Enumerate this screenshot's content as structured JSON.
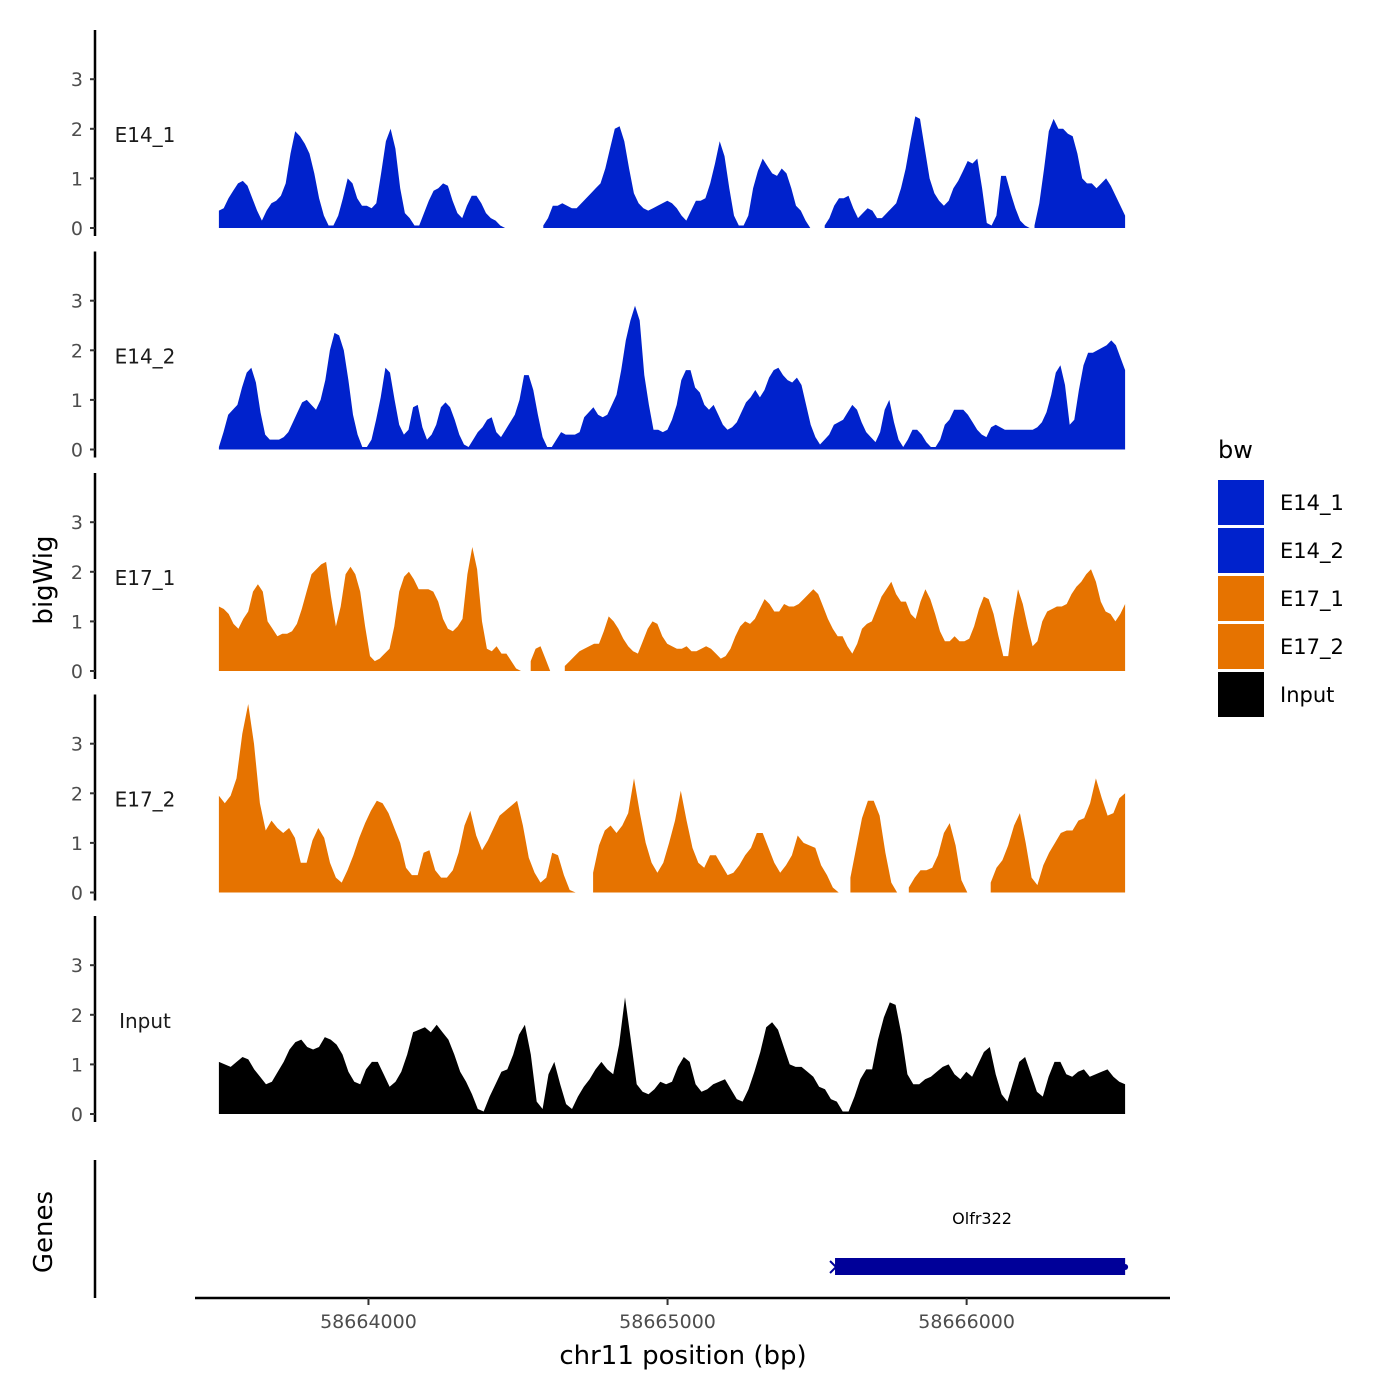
{
  "chart_data": {
    "type": "area",
    "ylabel": "bigWig",
    "xlabel": "chr11 position (bp)",
    "genes_label": "Genes",
    "x_range": [
      58663500,
      58666530
    ],
    "xlim": [
      58663420,
      58666680
    ],
    "ylim": [
      0,
      4
    ],
    "y_ticks": [
      "0",
      "1",
      "2",
      "3"
    ],
    "x_ticks": [
      {
        "value": 58664000,
        "label": "58664000"
      },
      {
        "value": 58665000,
        "label": "58665000"
      },
      {
        "value": 58666000,
        "label": "58666000"
      }
    ],
    "legend": {
      "title": "bw",
      "entries": [
        {
          "label": "E14_1",
          "color": "#0022cc"
        },
        {
          "label": "E14_2",
          "color": "#0022cc"
        },
        {
          "label": "E17_1",
          "color": "#e67300"
        },
        {
          "label": "E17_2",
          "color": "#e67300"
        },
        {
          "label": "Input",
          "color": "#000000"
        }
      ]
    },
    "series": [
      {
        "name": "E14_1",
        "color": "#0022cc",
        "values": [
          0.35,
          0.4,
          0.6,
          0.75,
          0.9,
          0.95,
          0.85,
          0.6,
          0.35,
          0.15,
          0.35,
          0.5,
          0.55,
          0.65,
          0.9,
          1.5,
          1.95,
          1.85,
          1.7,
          1.5,
          1.1,
          0.6,
          0.25,
          0.05,
          0.05,
          0.25,
          0.6,
          1.0,
          0.9,
          0.6,
          0.45,
          0.45,
          0.4,
          0.5,
          1.1,
          1.75,
          2.0,
          1.6,
          0.8,
          0.3,
          0.2,
          0.05,
          0.05,
          0.3,
          0.55,
          0.75,
          0.8,
          0.9,
          0.85,
          0.55,
          0.3,
          0.2,
          0.45,
          0.65,
          0.65,
          0.5,
          0.3,
          0.2,
          0.15,
          0.05,
          0.02,
          0.02,
          0.02,
          0.02,
          0.02,
          0.02,
          0.02,
          0.02,
          0.05,
          0.2,
          0.45,
          0.45,
          0.5,
          0.45,
          0.4,
          0.4,
          0.5,
          0.6,
          0.7,
          0.8,
          0.9,
          1.2,
          1.6,
          2.0,
          2.05,
          1.75,
          1.2,
          0.7,
          0.5,
          0.4,
          0.35,
          0.4,
          0.45,
          0.5,
          0.55,
          0.5,
          0.4,
          0.25,
          0.15,
          0.35,
          0.55,
          0.55,
          0.6,
          0.9,
          1.3,
          1.75,
          1.45,
          0.8,
          0.25,
          0.05,
          0.05,
          0.25,
          0.8,
          1.15,
          1.4,
          1.25,
          1.1,
          1.05,
          1.2,
          1.1,
          0.8,
          0.45,
          0.35,
          0.15,
          0.02,
          0.02,
          0.02,
          0.05,
          0.2,
          0.45,
          0.6,
          0.6,
          0.65,
          0.4,
          0.2,
          0.3,
          0.4,
          0.35,
          0.2,
          0.2,
          0.3,
          0.4,
          0.5,
          0.8,
          1.2,
          1.75,
          2.25,
          2.2,
          1.6,
          1.0,
          0.7,
          0.55,
          0.45,
          0.55,
          0.8,
          0.95,
          1.15,
          1.35,
          1.3,
          1.4,
          0.8,
          0.1,
          0.05,
          0.25,
          1.05,
          1.05,
          0.7,
          0.4,
          0.15,
          0.05,
          0.02,
          0.05,
          0.5,
          1.2,
          1.95,
          2.2,
          2.0,
          2.0,
          1.9,
          1.85,
          1.5,
          1.0,
          0.9,
          0.9,
          0.8,
          0.9,
          1.0,
          0.85,
          0.65,
          0.45,
          0.25
        ]
      },
      {
        "name": "E14_2",
        "color": "#0022cc",
        "values": [
          0.05,
          0.35,
          0.7,
          0.8,
          0.9,
          1.25,
          1.55,
          1.65,
          1.35,
          0.75,
          0.3,
          0.2,
          0.2,
          0.2,
          0.25,
          0.35,
          0.55,
          0.75,
          0.95,
          1.0,
          0.9,
          0.8,
          1.0,
          1.4,
          2.0,
          2.35,
          2.3,
          2.0,
          1.4,
          0.7,
          0.3,
          0.05,
          0.05,
          0.2,
          0.6,
          1.05,
          1.65,
          1.55,
          1.0,
          0.5,
          0.3,
          0.4,
          0.85,
          0.9,
          0.45,
          0.2,
          0.3,
          0.5,
          0.85,
          0.95,
          0.85,
          0.6,
          0.3,
          0.1,
          0.05,
          0.2,
          0.35,
          0.45,
          0.6,
          0.65,
          0.35,
          0.25,
          0.4,
          0.55,
          0.7,
          1.0,
          1.5,
          1.5,
          1.2,
          0.7,
          0.25,
          0.05,
          0.05,
          0.2,
          0.35,
          0.3,
          0.3,
          0.3,
          0.35,
          0.65,
          0.75,
          0.85,
          0.7,
          0.65,
          0.7,
          0.9,
          1.1,
          1.6,
          2.2,
          2.6,
          2.9,
          2.6,
          1.5,
          0.9,
          0.4,
          0.4,
          0.35,
          0.4,
          0.6,
          0.9,
          1.4,
          1.6,
          1.6,
          1.25,
          1.15,
          0.9,
          0.8,
          0.9,
          0.7,
          0.5,
          0.4,
          0.45,
          0.55,
          0.75,
          0.95,
          1.05,
          1.2,
          1.05,
          1.2,
          1.45,
          1.6,
          1.65,
          1.5,
          1.4,
          1.35,
          1.45,
          1.3,
          0.9,
          0.5,
          0.25,
          0.1,
          0.2,
          0.3,
          0.5,
          0.55,
          0.6,
          0.75,
          0.9,
          0.8,
          0.55,
          0.35,
          0.25,
          0.15,
          0.35,
          0.8,
          1.0,
          0.55,
          0.2,
          0.05,
          0.2,
          0.4,
          0.4,
          0.3,
          0.15,
          0.05,
          0.05,
          0.2,
          0.5,
          0.6,
          0.8,
          0.8,
          0.8,
          0.7,
          0.55,
          0.4,
          0.3,
          0.25,
          0.45,
          0.5,
          0.45,
          0.4,
          0.4,
          0.4,
          0.4,
          0.4,
          0.4,
          0.4,
          0.45,
          0.55,
          0.75,
          1.1,
          1.55,
          1.7,
          1.3,
          0.5,
          0.6,
          1.2,
          1.7,
          1.95,
          1.95,
          2.0,
          2.05,
          2.1,
          2.2,
          2.1,
          1.85,
          1.6
        ]
      },
      {
        "name": "E17_1",
        "color": "#e67300",
        "values": [
          1.3,
          1.25,
          1.15,
          0.95,
          0.85,
          1.05,
          1.2,
          1.6,
          1.75,
          1.6,
          1.0,
          0.85,
          0.7,
          0.75,
          0.75,
          0.8,
          0.95,
          1.25,
          1.6,
          1.95,
          2.05,
          2.15,
          2.2,
          1.5,
          0.9,
          1.3,
          1.95,
          2.1,
          1.95,
          1.6,
          0.9,
          0.3,
          0.2,
          0.25,
          0.35,
          0.45,
          0.9,
          1.6,
          1.9,
          2.0,
          1.85,
          1.65,
          1.65,
          1.65,
          1.6,
          1.4,
          1.05,
          0.85,
          0.8,
          0.9,
          1.05,
          1.95,
          2.5,
          2.05,
          1.0,
          0.45,
          0.4,
          0.5,
          0.35,
          0.35,
          0.2,
          0.05,
          0.02,
          0.02,
          0.2,
          0.45,
          0.5,
          0.25,
          0.02,
          0.02,
          0.02,
          0.1,
          0.2,
          0.3,
          0.4,
          0.45,
          0.5,
          0.55,
          0.55,
          0.8,
          1.1,
          1.0,
          0.85,
          0.65,
          0.5,
          0.4,
          0.35,
          0.6,
          0.85,
          1.0,
          0.95,
          0.7,
          0.55,
          0.5,
          0.45,
          0.45,
          0.5,
          0.4,
          0.4,
          0.45,
          0.5,
          0.45,
          0.35,
          0.25,
          0.3,
          0.45,
          0.7,
          0.9,
          1.0,
          0.95,
          1.05,
          1.25,
          1.45,
          1.35,
          1.2,
          1.2,
          1.35,
          1.3,
          1.3,
          1.35,
          1.45,
          1.55,
          1.65,
          1.55,
          1.3,
          1.05,
          0.85,
          0.7,
          0.7,
          0.5,
          0.35,
          0.55,
          0.85,
          0.95,
          1.0,
          1.25,
          1.5,
          1.65,
          1.8,
          1.55,
          1.4,
          1.4,
          1.15,
          1.05,
          1.4,
          1.65,
          1.45,
          1.15,
          0.8,
          0.6,
          0.6,
          0.7,
          0.6,
          0.6,
          0.65,
          0.9,
          1.25,
          1.5,
          1.45,
          1.15,
          0.7,
          0.3,
          0.3,
          1.05,
          1.65,
          1.35,
          0.9,
          0.5,
          0.6,
          1.0,
          1.2,
          1.25,
          1.3,
          1.3,
          1.35,
          1.55,
          1.7,
          1.8,
          1.95,
          2.05,
          1.8,
          1.4,
          1.2,
          1.15,
          1.0,
          1.15,
          1.35
        ]
      },
      {
        "name": "E17_2",
        "color": "#e67300",
        "values": [
          1.95,
          1.8,
          1.95,
          2.3,
          3.2,
          3.8,
          3.0,
          1.8,
          1.25,
          1.45,
          1.3,
          1.2,
          1.3,
          1.1,
          0.6,
          0.6,
          1.05,
          1.3,
          1.1,
          0.6,
          0.3,
          0.2,
          0.45,
          0.75,
          1.1,
          1.4,
          1.65,
          1.85,
          1.8,
          1.6,
          1.3,
          1.0,
          0.5,
          0.35,
          0.35,
          0.8,
          0.85,
          0.45,
          0.3,
          0.3,
          0.45,
          0.8,
          1.35,
          1.65,
          1.15,
          0.85,
          1.05,
          1.3,
          1.55,
          1.65,
          1.75,
          1.85,
          1.35,
          0.7,
          0.4,
          0.2,
          0.3,
          0.8,
          0.75,
          0.35,
          0.05,
          0.02,
          0.02,
          0.02,
          0.4,
          0.95,
          1.25,
          1.35,
          1.2,
          1.35,
          1.6,
          2.3,
          1.6,
          1.0,
          0.6,
          0.4,
          0.6,
          1.0,
          1.45,
          2.05,
          1.45,
          0.9,
          0.6,
          0.5,
          0.75,
          0.75,
          0.55,
          0.35,
          0.4,
          0.55,
          0.75,
          0.9,
          1.2,
          1.2,
          0.9,
          0.6,
          0.4,
          0.55,
          0.75,
          1.15,
          1.0,
          0.95,
          0.9,
          0.55,
          0.35,
          0.1,
          0.02,
          0.02,
          0.3,
          0.9,
          1.5,
          1.85,
          1.85,
          1.55,
          0.8,
          0.2,
          0.02,
          0.02,
          0.1,
          0.3,
          0.45,
          0.45,
          0.5,
          0.75,
          1.2,
          1.4,
          0.95,
          0.25,
          0.02,
          0.02,
          0.02,
          0.02,
          0.2,
          0.5,
          0.65,
          0.95,
          1.35,
          1.6,
          1.0,
          0.3,
          0.15,
          0.55,
          0.8,
          1.0,
          1.2,
          1.25,
          1.25,
          1.45,
          1.5,
          1.8,
          2.3,
          1.9,
          1.55,
          1.6,
          1.9,
          2.0
        ]
      },
      {
        "name": "Input",
        "color": "#000000",
        "values": [
          1.05,
          1.0,
          0.95,
          1.05,
          1.15,
          1.1,
          0.9,
          0.75,
          0.6,
          0.65,
          0.85,
          1.05,
          1.3,
          1.45,
          1.5,
          1.35,
          1.3,
          1.35,
          1.55,
          1.5,
          1.4,
          1.2,
          0.85,
          0.65,
          0.6,
          0.9,
          1.05,
          1.05,
          0.8,
          0.55,
          0.65,
          0.85,
          1.2,
          1.65,
          1.7,
          1.75,
          1.65,
          1.8,
          1.65,
          1.5,
          1.2,
          0.85,
          0.65,
          0.4,
          0.1,
          0.05,
          0.35,
          0.6,
          0.85,
          0.9,
          1.2,
          1.6,
          1.8,
          1.2,
          0.25,
          0.1,
          0.8,
          1.05,
          0.6,
          0.2,
          0.1,
          0.35,
          0.55,
          0.7,
          0.9,
          1.05,
          0.9,
          0.8,
          1.4,
          2.35,
          1.5,
          0.6,
          0.45,
          0.4,
          0.5,
          0.65,
          0.6,
          0.65,
          0.95,
          1.15,
          1.05,
          0.6,
          0.45,
          0.5,
          0.6,
          0.65,
          0.7,
          0.5,
          0.3,
          0.25,
          0.5,
          0.85,
          1.25,
          1.75,
          1.85,
          1.7,
          1.35,
          1.0,
          0.95,
          0.95,
          0.85,
          0.75,
          0.55,
          0.5,
          0.3,
          0.25,
          0.05,
          0.05,
          0.35,
          0.7,
          0.9,
          0.9,
          1.5,
          1.95,
          2.25,
          2.2,
          1.6,
          0.8,
          0.6,
          0.6,
          0.7,
          0.75,
          0.85,
          0.95,
          1.0,
          0.8,
          0.7,
          0.85,
          0.75,
          1.0,
          1.25,
          1.35,
          0.8,
          0.4,
          0.25,
          0.65,
          1.05,
          1.15,
          0.8,
          0.45,
          0.35,
          0.75,
          1.05,
          1.05,
          0.8,
          0.75,
          0.85,
          0.9,
          0.75,
          0.8,
          0.85,
          0.9,
          0.75,
          0.65,
          0.6
        ]
      }
    ],
    "gene": {
      "name": "Olfr322",
      "start": 58665560,
      "end": 58666530,
      "color": "#000099"
    }
  }
}
